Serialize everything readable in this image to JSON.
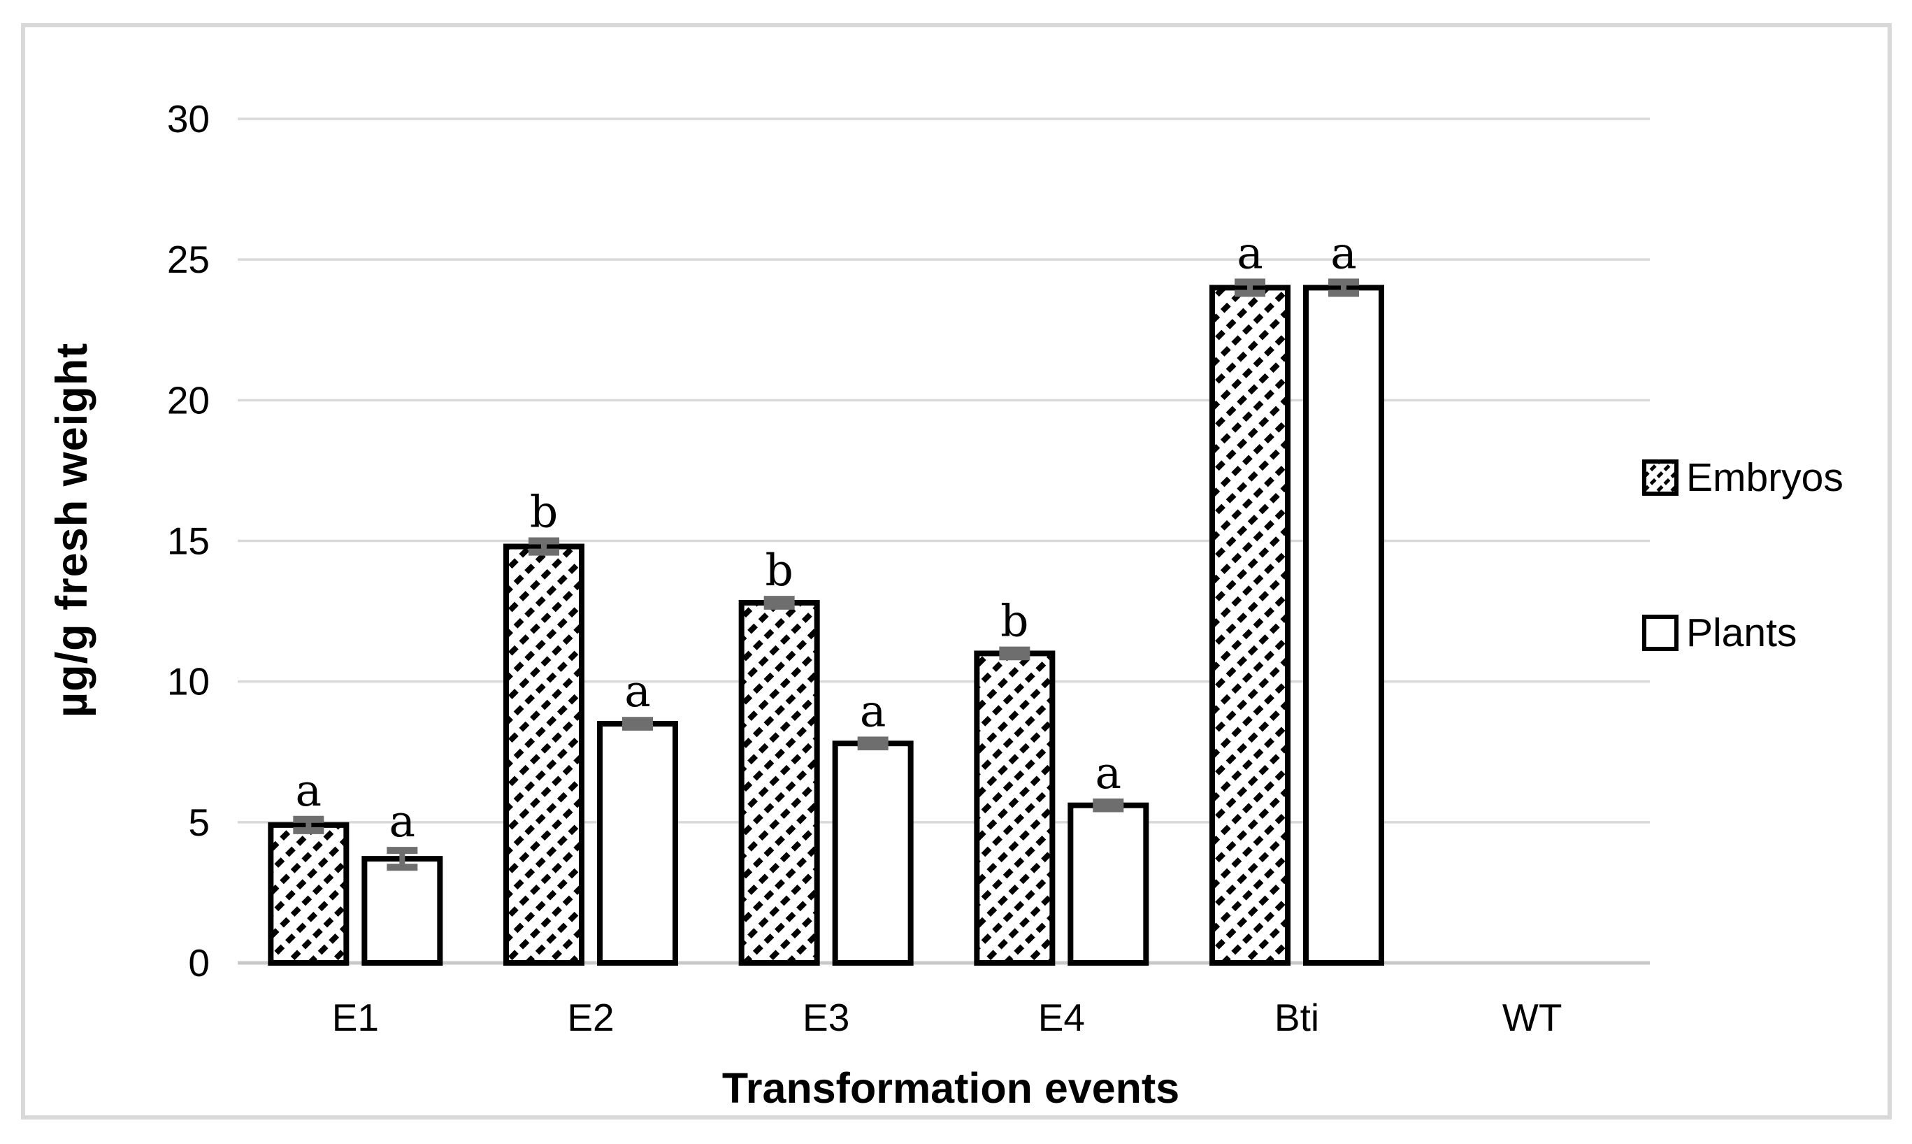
{
  "chart_data": {
    "type": "bar",
    "title": "",
    "xlabel": "Transformation events",
    "ylabel": "µg/g fresh weight",
    "categories": [
      "E1",
      "E2",
      "E3",
      "E4",
      "Bti",
      "WT"
    ],
    "series": [
      {
        "name": "Embryos",
        "fill": "diagonal-hatch",
        "values": [
          4.9,
          14.8,
          12.8,
          11.0,
          24.0,
          0
        ],
        "errors": [
          0.2,
          0.2,
          0.12,
          0.12,
          0.2,
          0
        ],
        "letters": [
          "a",
          "b",
          "b",
          "b",
          "a",
          ""
        ]
      },
      {
        "name": "Plants",
        "fill": "solid-white",
        "values": [
          3.7,
          8.5,
          7.8,
          5.6,
          24.0,
          0
        ],
        "errors": [
          0.3,
          0.12,
          0.12,
          0.12,
          0.2,
          0
        ],
        "letters": [
          "a",
          "a",
          "a",
          "a",
          "a",
          ""
        ]
      }
    ],
    "ylim": [
      0,
      30
    ],
    "yticks": [
      0,
      5,
      10,
      15,
      20,
      25,
      30
    ],
    "grid": true,
    "legend_position": "right"
  },
  "colors": {
    "bar_outline": "#000000",
    "hatch": "#000000",
    "bar_fill": "#ffffff",
    "gridline": "#d9d9d9",
    "baseline": "#c8c8c8",
    "error_bar": "#6e6e6e",
    "figure_border": "#d9d9d9",
    "text": "#000000"
  }
}
